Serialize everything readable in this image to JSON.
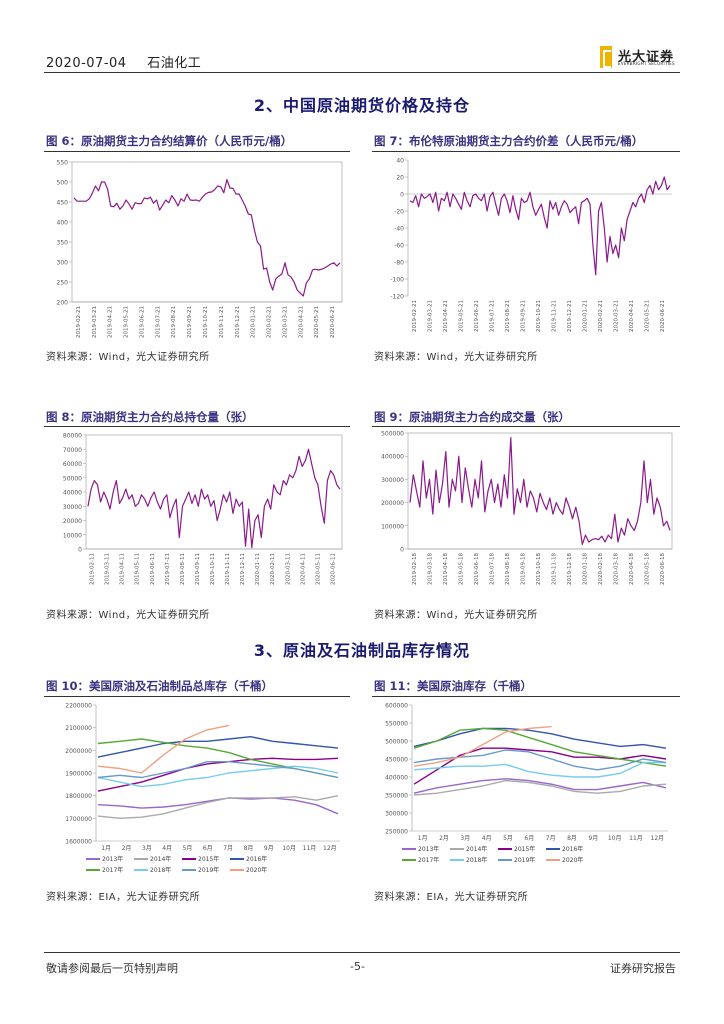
{
  "header": {
    "date": "2020-07-04",
    "section": "石油化工",
    "logo_cn": "光大证券",
    "logo_en": "EVERBRIGHT SECURITIES"
  },
  "sections": {
    "s2": "2、中国原油期货价格及持仓",
    "s3": "3、原油及石油制品库存情况"
  },
  "figures": {
    "f6": {
      "title": "图 6：原油期货主力合约结算价（人民币元/桶）",
      "source": "资料来源：Wind，光大证券研究所"
    },
    "f7": {
      "title": "图 7：布伦特原油期货主力合约价差（人民币元/桶）",
      "source": "资料来源：Wind，光大证券研究所"
    },
    "f8": {
      "title": "图 8：原油期货主力合约总持仓量（张）",
      "source": "资料来源：Wind，光大证券研究所"
    },
    "f9": {
      "title": "图 9：原油期货主力合约成交量（张）",
      "source": "资料来源：Wind，光大证券研究所"
    },
    "f10": {
      "title": "图 10：美国原油及石油制品总库存（千桶）",
      "source": "资料来源：EIA，光大证券研究所"
    },
    "f11": {
      "title": "图 11：美国原油库存（千桶）",
      "source": "资料来源：EIA，光大证券研究所"
    }
  },
  "footer": {
    "left": "敬请参阅最后一页特别声明",
    "center": "-5-",
    "right": "证券研究报告"
  },
  "colors": {
    "purple": "#8b1a8b",
    "axis": "#888",
    "grid": "#ddd"
  },
  "chart_data": [
    {
      "id": "f6",
      "type": "line",
      "ylim": [
        200,
        550
      ],
      "yticks": [
        200,
        250,
        300,
        350,
        400,
        450,
        500,
        550
      ],
      "xticks": [
        "2019-02-21",
        "2019-03-21",
        "2019-04-21",
        "2019-05-21",
        "2019-06-21",
        "2019-07-21",
        "2019-08-21",
        "2019-09-21",
        "2019-10-21",
        "2019-11-21",
        "2019-12-21",
        "2020-01-21",
        "2020-02-21",
        "2020-03-21",
        "2020-04-21",
        "2020-05-21",
        "2020-06-21"
      ],
      "values": [
        460,
        452,
        452,
        452,
        452,
        458,
        472,
        490,
        478,
        500,
        500,
        482,
        440,
        438,
        447,
        432,
        440,
        455,
        445,
        432,
        448,
        446,
        446,
        460,
        458,
        462,
        447,
        455,
        430,
        442,
        455,
        448,
        466,
        455,
        440,
        458,
        452,
        470,
        455,
        454,
        455,
        452,
        462,
        470,
        474,
        475,
        481,
        490,
        488,
        473,
        506,
        485,
        484,
        470,
        470,
        455,
        440,
        420,
        418,
        380,
        350,
        340,
        282,
        285,
        250,
        230,
        258,
        265,
        270,
        298,
        268,
        262,
        250,
        230,
        222,
        215,
        248,
        258,
        280,
        282,
        280,
        282,
        285,
        290,
        295,
        298,
        290,
        298
      ]
    },
    {
      "id": "f7",
      "type": "line",
      "ylim": [
        -120,
        40
      ],
      "yticks": [
        -120,
        -100,
        -80,
        -60,
        -40,
        -20,
        0,
        20,
        40
      ],
      "xticks": [
        "2019-02-21",
        "2019-03-21",
        "2019-04-21",
        "2019-05-21",
        "2019-06-21",
        "2019-07-21",
        "2019-08-21",
        "2019-09-21",
        "2019-10-21",
        "2019-11-21",
        "2019-12-21",
        "2020-01-21",
        "2020-02-21",
        "2020-03-21",
        "2020-04-21",
        "2020-05-21",
        "2020-06-21"
      ],
      "values": [
        -8,
        -10,
        -2,
        -15,
        0,
        -5,
        -3,
        0,
        -10,
        2,
        -20,
        -5,
        -8,
        2,
        -15,
        0,
        -5,
        -12,
        -18,
        2,
        -8,
        -15,
        -2,
        0,
        -5,
        -8,
        0,
        -20,
        -3,
        2,
        -12,
        -25,
        -5,
        0,
        -8,
        -22,
        -2,
        -18,
        -30,
        -5,
        -10,
        -8,
        2,
        -15,
        -25,
        -18,
        -12,
        -28,
        -40,
        -8,
        -18,
        -10,
        -25,
        -15,
        -8,
        -12,
        -22,
        -18,
        -15,
        -35,
        -10,
        -8,
        -5,
        -12,
        -60,
        -95,
        -20,
        -10,
        -40,
        -80,
        -50,
        -70,
        -60,
        -75,
        -40,
        -55,
        -30,
        -20,
        -10,
        -15,
        -5,
        0,
        -10,
        5,
        10,
        0,
        15,
        5,
        10,
        20,
        5,
        10
      ]
    },
    {
      "id": "f8",
      "type": "line",
      "ylim": [
        0,
        80000
      ],
      "yticks": [
        0,
        10000,
        20000,
        30000,
        40000,
        50000,
        60000,
        70000,
        80000
      ],
      "xticks": [
        "2019-02-11",
        "2019-03-11",
        "2019-04-11",
        "2019-05-11",
        "2019-06-11",
        "2019-07-11",
        "2019-08-11",
        "2019-09-11",
        "2019-10-11",
        "2019-11-11",
        "2019-12-11",
        "2020-01-11",
        "2020-02-11",
        "2020-03-11",
        "2020-04-11",
        "2020-05-11",
        "2020-06-11"
      ],
      "values": [
        30000,
        42000,
        48000,
        45000,
        33000,
        40000,
        35000,
        28000,
        40000,
        48000,
        32000,
        36000,
        42000,
        35000,
        38000,
        30000,
        32000,
        38000,
        35000,
        30000,
        36000,
        40000,
        33000,
        28000,
        35000,
        38000,
        22000,
        30000,
        35000,
        8000,
        30000,
        35000,
        40000,
        32000,
        38000,
        30000,
        42000,
        35000,
        38000,
        30000,
        34000,
        20000,
        28000,
        38000,
        33000,
        40000,
        25000,
        35000,
        30000,
        33000,
        2000,
        28000,
        1000,
        20000,
        24000,
        8000,
        30000,
        35000,
        28000,
        45000,
        40000,
        38000,
        48000,
        45000,
        52000,
        50000,
        55000,
        65000,
        58000,
        62000,
        70000,
        60000,
        50000,
        45000,
        30000,
        18000,
        48000,
        55000,
        52000,
        45000,
        42000
      ]
    },
    {
      "id": "f9",
      "type": "line",
      "ylim": [
        0,
        500000
      ],
      "yticks": [
        0,
        100000,
        200000,
        300000,
        400000,
        500000
      ],
      "xticks": [
        "2019-02-18",
        "2019-03-18",
        "2019-04-18",
        "2019-05-18",
        "2019-06-18",
        "2019-07-18",
        "2019-08-18",
        "2019-09-18",
        "2019-10-18",
        "2019-11-18",
        "2019-12-18",
        "2020-01-18",
        "2020-02-18",
        "2020-03-18",
        "2020-04-18",
        "2020-05-18",
        "2020-06-18"
      ],
      "values": [
        200000,
        320000,
        250000,
        180000,
        380000,
        220000,
        300000,
        150000,
        340000,
        200000,
        280000,
        420000,
        180000,
        300000,
        250000,
        400000,
        200000,
        350000,
        260000,
        180000,
        300000,
        220000,
        380000,
        160000,
        250000,
        300000,
        200000,
        280000,
        180000,
        320000,
        220000,
        480000,
        150000,
        260000,
        200000,
        300000,
        180000,
        250000,
        220000,
        160000,
        240000,
        200000,
        170000,
        220000,
        150000,
        200000,
        170000,
        150000,
        220000,
        180000,
        130000,
        180000,
        120000,
        20000,
        60000,
        30000,
        40000,
        45000,
        40000,
        55000,
        30000,
        60000,
        45000,
        150000,
        30000,
        90000,
        60000,
        130000,
        100000,
        80000,
        120000,
        200000,
        380000,
        200000,
        300000,
        150000,
        220000,
        180000,
        100000,
        120000,
        80000
      ]
    },
    {
      "id": "f10",
      "type": "line",
      "ylim": [
        1600000,
        2200000
      ],
      "yticks": [
        1600000,
        1700000,
        1800000,
        1900000,
        2000000,
        2100000,
        2200000
      ],
      "xticks": [
        "1月",
        "2月",
        "3月",
        "4月",
        "5月",
        "6月",
        "7月",
        "8月",
        "9月",
        "10月",
        "11月",
        "12月"
      ],
      "series": [
        {
          "name": "2013年",
          "color": "#9966cc",
          "values": [
            1760000,
            1755000,
            1745000,
            1750000,
            1760000,
            1775000,
            1790000,
            1785000,
            1790000,
            1780000,
            1760000,
            1720000
          ]
        },
        {
          "name": "2014年",
          "color": "#aaaaaa",
          "values": [
            1710000,
            1700000,
            1705000,
            1720000,
            1745000,
            1770000,
            1790000,
            1790000,
            1790000,
            1795000,
            1780000,
            1800000
          ]
        },
        {
          "name": "2015年",
          "color": "#8b008b",
          "values": [
            1820000,
            1840000,
            1860000,
            1890000,
            1920000,
            1940000,
            1950000,
            1960000,
            1965000,
            1960000,
            1960000,
            1965000
          ]
        },
        {
          "name": "2016年",
          "color": "#3355aa",
          "values": [
            1970000,
            1990000,
            2010000,
            2030000,
            2040000,
            2040000,
            2050000,
            2060000,
            2040000,
            2030000,
            2020000,
            2010000
          ]
        },
        {
          "name": "2017年",
          "color": "#55aa33",
          "values": [
            2030000,
            2040000,
            2050000,
            2035000,
            2020000,
            2010000,
            1990000,
            1960000,
            1940000,
            1920000,
            1900000,
            1880000
          ]
        },
        {
          "name": "2018年",
          "color": "#77ccee",
          "values": [
            1880000,
            1860000,
            1840000,
            1850000,
            1870000,
            1880000,
            1900000,
            1910000,
            1920000,
            1930000,
            1920000,
            1900000
          ]
        },
        {
          "name": "2019年",
          "color": "#6699cc",
          "values": [
            1880000,
            1890000,
            1880000,
            1900000,
            1920000,
            1950000,
            1950000,
            1940000,
            1930000,
            1920000,
            1900000,
            1880000
          ]
        },
        {
          "name": "2020年",
          "color": "#f0a080",
          "values": [
            1930000,
            1920000,
            1900000,
            1980000,
            2050000,
            2090000,
            2110000
          ]
        }
      ]
    },
    {
      "id": "f11",
      "type": "line",
      "ylim": [
        250000,
        600000
      ],
      "yticks": [
        250000,
        300000,
        350000,
        400000,
        450000,
        500000,
        550000,
        600000
      ],
      "xticks": [
        "1月",
        "2月",
        "3月",
        "4月",
        "5月",
        "6月",
        "7月",
        "8月",
        "9月",
        "10月",
        "11月",
        "12月"
      ],
      "series": [
        {
          "name": "2013年",
          "color": "#9966cc",
          "values": [
            355000,
            370000,
            380000,
            390000,
            395000,
            390000,
            380000,
            365000,
            365000,
            375000,
            385000,
            370000
          ]
        },
        {
          "name": "2014年",
          "color": "#aaaaaa",
          "values": [
            350000,
            355000,
            365000,
            375000,
            390000,
            385000,
            375000,
            360000,
            355000,
            360000,
            375000,
            380000
          ]
        },
        {
          "name": "2015年",
          "color": "#8b008b",
          "values": [
            380000,
            420000,
            460000,
            480000,
            480000,
            475000,
            470000,
            455000,
            455000,
            450000,
            460000,
            450000
          ]
        },
        {
          "name": "2016年",
          "color": "#3355aa",
          "values": [
            485000,
            500000,
            520000,
            535000,
            535000,
            530000,
            520000,
            505000,
            495000,
            485000,
            490000,
            480000
          ]
        },
        {
          "name": "2017年",
          "color": "#55aa33",
          "values": [
            480000,
            500000,
            530000,
            535000,
            530000,
            510000,
            490000,
            470000,
            460000,
            450000,
            440000,
            430000
          ]
        },
        {
          "name": "2018年",
          "color": "#77ccee",
          "values": [
            420000,
            425000,
            430000,
            430000,
            435000,
            415000,
            405000,
            400000,
            400000,
            410000,
            440000,
            440000
          ]
        },
        {
          "name": "2019年",
          "color": "#6699cc",
          "values": [
            440000,
            450000,
            455000,
            460000,
            475000,
            470000,
            450000,
            430000,
            420000,
            430000,
            450000,
            440000
          ]
        },
        {
          "name": "2020年",
          "color": "#f0a080",
          "values": [
            430000,
            440000,
            455000,
            490000,
            525000,
            535000,
            540000
          ]
        }
      ]
    }
  ]
}
